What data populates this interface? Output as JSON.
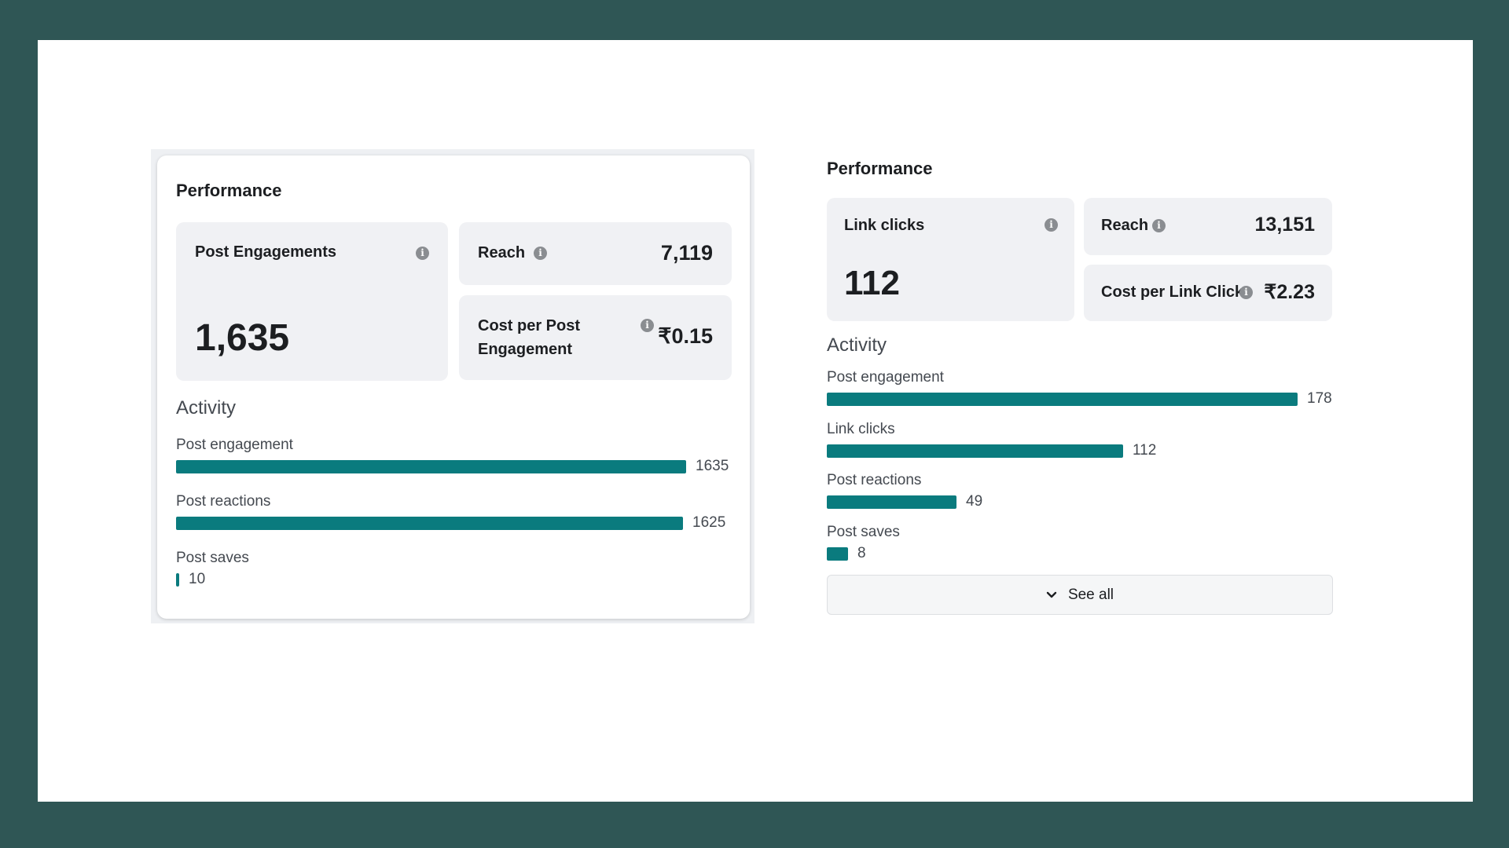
{
  "left": {
    "title": "Performance",
    "post_engagements": {
      "label": "Post Engagements",
      "value": "1,635"
    },
    "reach": {
      "label": "Reach",
      "value": "7,119"
    },
    "cost_per_engagement": {
      "label_line1": "Cost per Post",
      "label_line2": "Engagement",
      "value": "₹0.15"
    },
    "activity_title": "Activity",
    "activity": [
      {
        "label": "Post engagement",
        "value": 1635,
        "display": "1635"
      },
      {
        "label": "Post reactions",
        "value": 1625,
        "display": "1625"
      },
      {
        "label": "Post saves",
        "value": 10,
        "display": "10"
      }
    ]
  },
  "right": {
    "title": "Performance",
    "link_clicks": {
      "label": "Link clicks",
      "value": "112"
    },
    "reach": {
      "label": "Reach",
      "value": "13,151"
    },
    "cost_per_link_click": {
      "label": "Cost per Link Click",
      "value": "₹2.23"
    },
    "activity_title": "Activity",
    "activity": [
      {
        "label": "Post engagement",
        "value": 178,
        "display": "178"
      },
      {
        "label": "Link clicks",
        "value": 112,
        "display": "112"
      },
      {
        "label": "Post reactions",
        "value": 49,
        "display": "49"
      },
      {
        "label": "Post saves",
        "value": 8,
        "display": "8"
      }
    ],
    "see_all_label": "See all"
  },
  "colors": {
    "bar": "#0a7b7e",
    "frame": "#2f5655",
    "tile": "#f0f1f4"
  },
  "icons": [
    "info-icon",
    "chevron-down-icon"
  ]
}
